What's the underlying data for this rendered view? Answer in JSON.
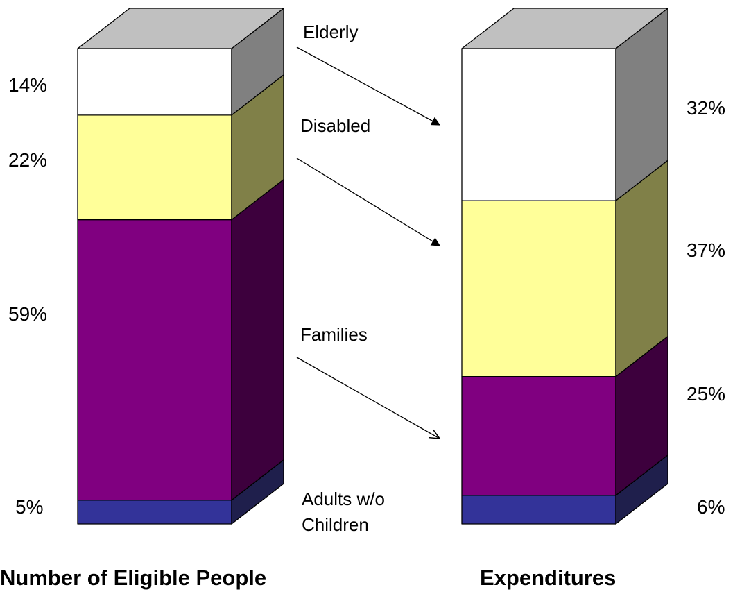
{
  "chart_data": {
    "type": "bar",
    "stacked": true,
    "categories": [
      "Number of Eligible People",
      "Expenditures"
    ],
    "series": [
      {
        "name": "Adults w/o Children",
        "values": [
          5,
          6
        ],
        "color": "#333399"
      },
      {
        "name": "Families",
        "values": [
          59,
          25
        ],
        "color": "#800080"
      },
      {
        "name": "Disabled",
        "values": [
          22,
          37
        ],
        "color": "#FFFF99"
      },
      {
        "name": "Elderly",
        "values": [
          14,
          32
        ],
        "color": "#FFFFFF"
      }
    ],
    "value_labels": {
      "left": [
        "5%",
        "59%",
        "22%",
        "14%"
      ],
      "right": [
        "6%",
        "25%",
        "37%",
        "32%"
      ]
    },
    "legend_labels": {
      "elderly": "Elderly",
      "disabled": "Disabled",
      "families": "Families",
      "adults_line1": "Adults w/o",
      "adults_line2": "Children"
    },
    "captions": {
      "left": "Number of Eligible People",
      "right": "Expenditures"
    }
  }
}
